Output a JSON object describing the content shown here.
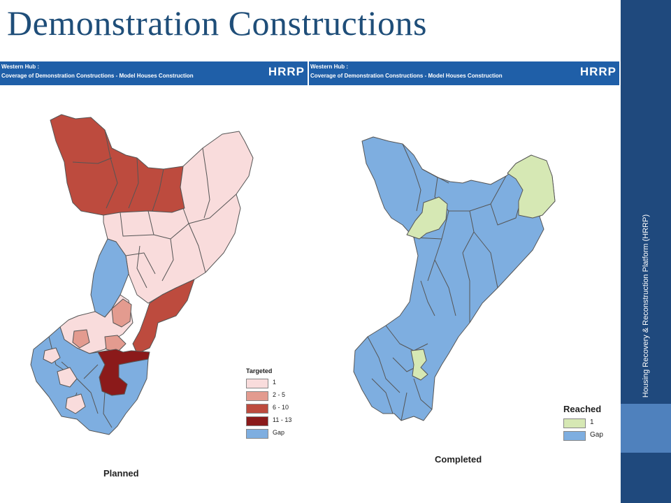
{
  "slide": {
    "title": "Demonstration Constructions",
    "sidebar_text": "Housing Recovery & Reconstruction Platform (HRRP)",
    "colors": {
      "sidebar": "#1f497d",
      "accent": "#4f81bd",
      "title": "#1f4e79"
    }
  },
  "maps": [
    {
      "banner_line1": "Western Hub :",
      "banner_line2": "Coverage of Demonstration Constructions - Model Houses Construction",
      "logo": "HRRP",
      "caption": "Planned",
      "legend_title": "Targeted",
      "legend": [
        {
          "label": "1",
          "color": "#f9dcdc"
        },
        {
          "label": "2 - 5",
          "color": "#e39b8f"
        },
        {
          "label": "6 - 10",
          "color": "#bd4b3e"
        },
        {
          "label": "11 - 13",
          "color": "#8b1a1a"
        },
        {
          "label": "Gap",
          "color": "#7eaee0"
        }
      ]
    },
    {
      "banner_line1": "Western Hub :",
      "banner_line2": "Coverage of Demonstration Constructions - Model Houses Construction",
      "logo": "HRRP",
      "caption": "Completed",
      "legend_title": "Reached",
      "legend": [
        {
          "label": "1",
          "color": "#d6e8b4"
        },
        {
          "label": "Gap",
          "color": "#7eaee0"
        }
      ]
    }
  ]
}
